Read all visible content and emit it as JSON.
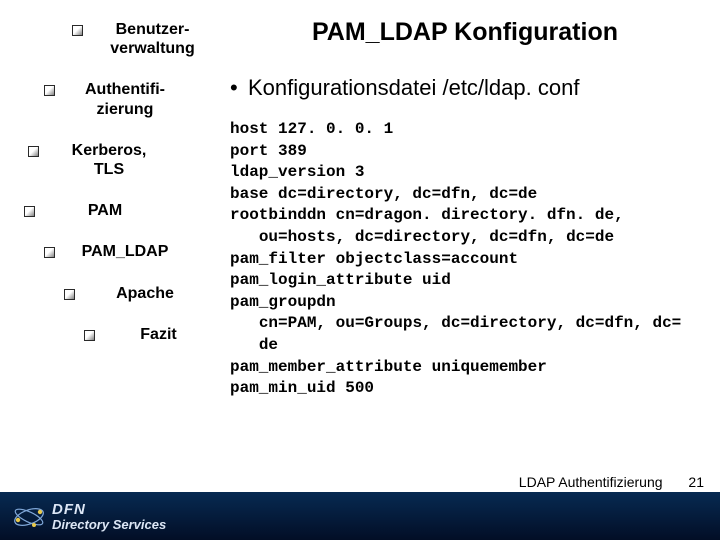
{
  "nav": {
    "items": [
      {
        "label": "Benutzer-\nverwaltung"
      },
      {
        "label": "Authentifi-\nzierung"
      },
      {
        "label": "Kerberos,\nTLS"
      },
      {
        "label": "PAM"
      },
      {
        "label": "PAM_LDAP"
      },
      {
        "label": "Apache"
      },
      {
        "label": "Fazit"
      }
    ],
    "label_fontsize": 16,
    "label_color": "#000000"
  },
  "content": {
    "title": "PAM_LDAP Konfiguration",
    "title_fontsize": 25,
    "bullet": "Konfigurationsdatei /etc/ldap. conf",
    "bullet_fontsize": 22,
    "code_fontsize": 16,
    "code_font": "Courier New",
    "code_lines": [
      "host 127. 0. 0. 1",
      "port 389",
      "ldap_version 3",
      "base dc=directory, dc=dfn, dc=de",
      "rootbinddn cn=dragon. directory. dfn. de,",
      "   ou=hosts, dc=directory, dc=dfn, dc=de",
      "pam_filter objectclass=account",
      "pam_login_attribute uid",
      "pam_groupdn",
      "   cn=PAM, ou=Groups, dc=directory, dc=dfn, dc=",
      "   de",
      "pam_member_attribute uniquemember",
      "pam_min_uid 500"
    ]
  },
  "footer": {
    "bar_gradient_top": "#072a52",
    "bar_gradient_bottom": "#020e26",
    "logo_line1": "DFN",
    "logo_line2": "Directory Services",
    "right_text": "LDAP Authentifizierung",
    "page_number": "21"
  },
  "colors": {
    "background": "#ffffff",
    "text": "#000000",
    "logo_text": "#dce6f5"
  }
}
